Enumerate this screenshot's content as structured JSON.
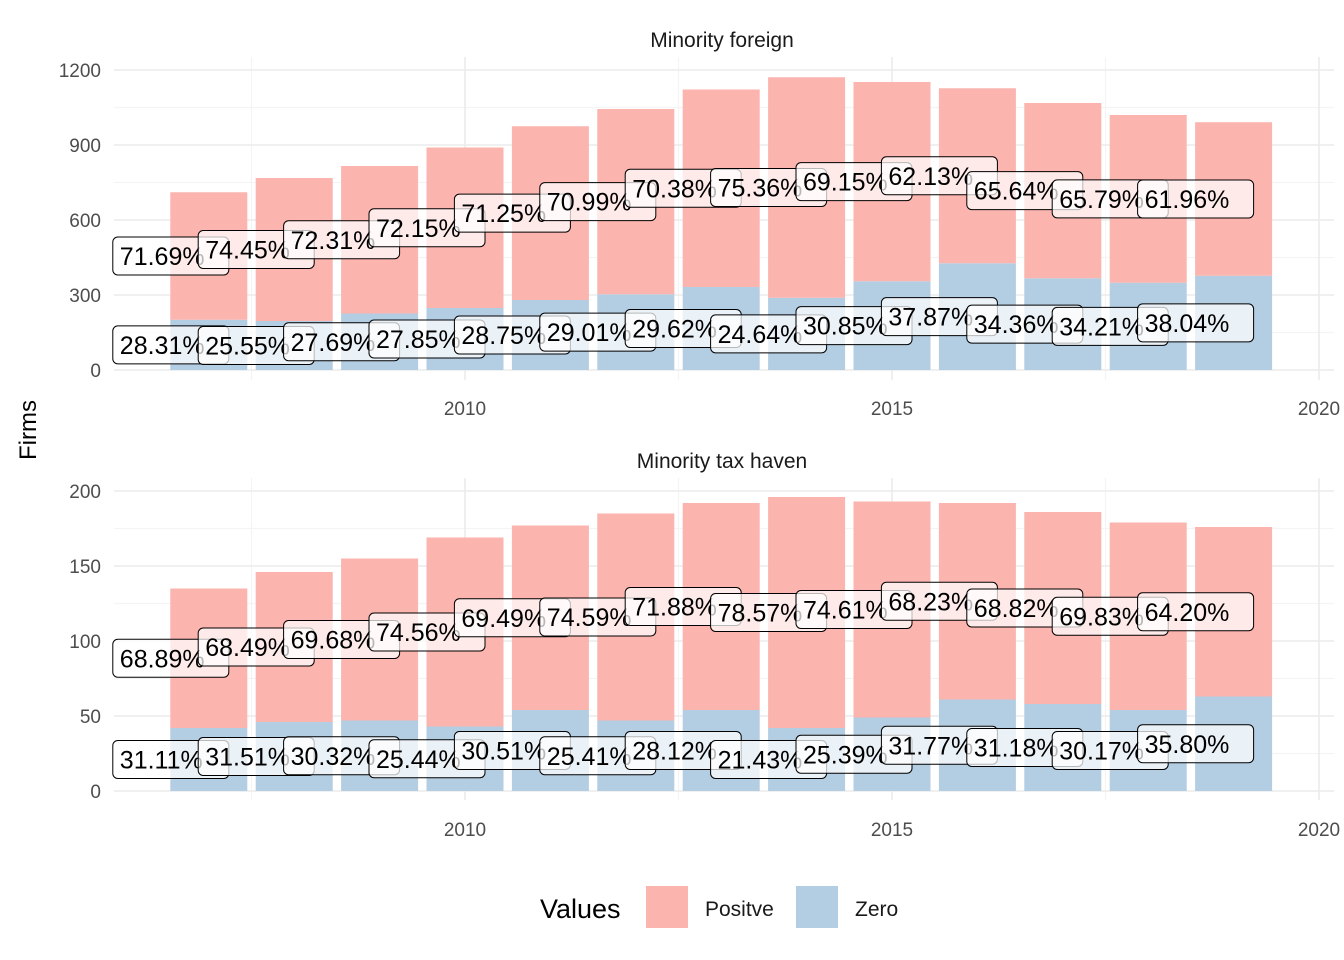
{
  "colors": {
    "positive": "#fbb4ae",
    "zero": "#b3cde3",
    "grid_major": "#ebebeb",
    "grid_minor": "#f4f4f4"
  },
  "chart_data": {
    "type": "bar",
    "stacked": true,
    "ylabel": "Firms",
    "x": [
      2007,
      2008,
      2009,
      2010,
      2011,
      2012,
      2013,
      2014,
      2015,
      2016,
      2017,
      2018,
      2019
    ],
    "legend": {
      "title": "Values",
      "position": "bottom",
      "entries": [
        "Positve",
        "Zero"
      ]
    },
    "panels": [
      {
        "title": "Minority foreign",
        "yticks": [
          0,
          300,
          600,
          900,
          1200
        ],
        "ylim": [
          0,
          1200
        ],
        "xticks": [
          "2010",
          "2015",
          "2020"
        ],
        "series": [
          {
            "name": "Positve",
            "values": [
              510,
              572,
              590,
              642,
              695,
              741,
              790,
              882,
              797,
              700,
              701,
              671,
              614
            ],
            "labels": [
              "71.69%",
              "74.45%",
              "72.31%",
              "72.15%",
              "71.25%",
              "70.99%",
              "70.38%",
              "75.36%",
              "69.15%",
              "62.13%",
              "65.64%",
              "65.79%",
              "61.96%"
            ]
          },
          {
            "name": "Zero",
            "values": [
              201,
              196,
              226,
              248,
              280,
              303,
              332,
              289,
              355,
              427,
              367,
              349,
              377
            ],
            "labels": [
              "28.31%",
              "25.55%",
              "27.69%",
              "27.85%",
              "28.75%",
              "29.01%",
              "29.62%",
              "24.64%",
              "30.85%",
              "37.87%",
              "34.36%",
              "34.21%",
              "38.04%"
            ]
          }
        ]
      },
      {
        "title": "Minority tax haven",
        "yticks": [
          0,
          50,
          100,
          150,
          200
        ],
        "ylim": [
          0,
          200
        ],
        "xticks": [
          "2010",
          "2015",
          "2020"
        ],
        "series": [
          {
            "name": "Positve",
            "values": [
              93,
              100,
              108,
              126,
              123,
              138,
              138,
              154,
              144,
              131,
              128,
              125,
              113
            ],
            "labels": [
              "68.89%",
              "68.49%",
              "69.68%",
              "74.56%",
              "69.49%",
              "74.59%",
              "71.88%",
              "78.57%",
              "74.61%",
              "68.23%",
              "68.82%",
              "69.83%",
              "64.20%"
            ]
          },
          {
            "name": "Zero",
            "values": [
              42,
              46,
              47,
              43,
              54,
              47,
              54,
              42,
              49,
              61,
              58,
              54,
              63
            ],
            "labels": [
              "31.11%",
              "31.51%",
              "30.32%",
              "25.44%",
              "30.51%",
              "25.41%",
              "28.12%",
              "21.43%",
              "25.39%",
              "31.77%",
              "31.18%",
              "30.17%",
              "35.80%"
            ]
          }
        ]
      }
    ]
  }
}
